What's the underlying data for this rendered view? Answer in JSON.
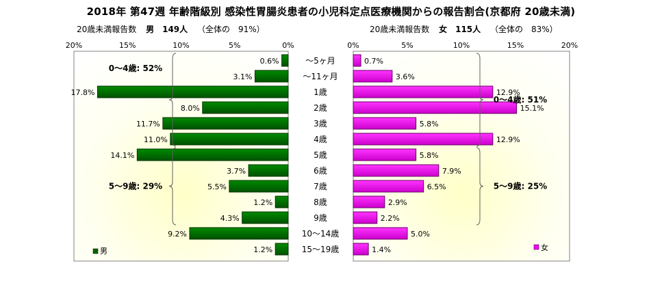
{
  "chart_data": {
    "type": "bar",
    "title": "2018年 第47週 年齢階級別 感染性胃腸炎患者の小児科定点医療機関からの報告割合(京都府 20歳未満)",
    "categories": [
      "～5ヶ月",
      "～11ヶ月",
      "1歳",
      "2歳",
      "3歳",
      "4歳",
      "5歳",
      "6歳",
      "7歳",
      "8歳",
      "9歳",
      "10～14歳",
      "15～19歳"
    ],
    "xlim": [
      0,
      20
    ],
    "xticks": [
      0,
      5,
      10,
      15,
      20
    ],
    "tick_suffix": "%",
    "male": {
      "subheader_label": "20歳未満報告数",
      "total": "男　149人",
      "share": "（全体の　91%）",
      "legend": "男",
      "color": "#006600",
      "values": [
        0.6,
        3.1,
        17.8,
        8.0,
        11.7,
        11.0,
        14.1,
        3.7,
        5.5,
        1.2,
        4.3,
        9.2,
        1.2
      ],
      "groups": [
        {
          "label": "0～4歳: 52%",
          "from": 0,
          "to": 5
        },
        {
          "label": "5～9歳: 29%",
          "from": 6,
          "to": 10
        }
      ]
    },
    "female": {
      "subheader_label": "20歳未満報告数",
      "total": "女　115人",
      "share": "（全体の　83%）",
      "legend": "女",
      "color": "#ff00ff",
      "values": [
        0.7,
        3.6,
        12.9,
        15.1,
        5.8,
        12.9,
        5.8,
        7.9,
        6.5,
        2.9,
        2.2,
        5.0,
        1.4
      ],
      "groups": [
        {
          "label": "0～4歳: 51%",
          "from": 0,
          "to": 5
        },
        {
          "label": "5～9歳: 25%",
          "from": 6,
          "to": 10
        }
      ]
    }
  }
}
